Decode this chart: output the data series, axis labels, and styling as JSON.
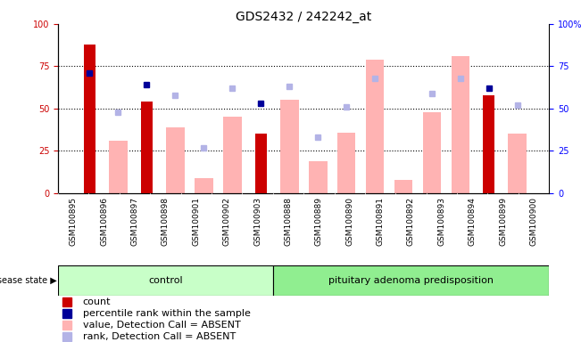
{
  "title": "GDS2432 / 242242_at",
  "samples": [
    "GSM100895",
    "GSM100896",
    "GSM100897",
    "GSM100898",
    "GSM100901",
    "GSM100902",
    "GSM100903",
    "GSM100888",
    "GSM100889",
    "GSM100890",
    "GSM100891",
    "GSM100892",
    "GSM100893",
    "GSM100894",
    "GSM100899",
    "GSM100900"
  ],
  "count": [
    88,
    0,
    54,
    0,
    0,
    0,
    35,
    0,
    0,
    0,
    0,
    0,
    0,
    0,
    58,
    0
  ],
  "percentile_rank": [
    71,
    0,
    64,
    0,
    0,
    0,
    53,
    0,
    0,
    0,
    0,
    0,
    0,
    0,
    62,
    0
  ],
  "value_absent": [
    0,
    31,
    0,
    39,
    9,
    45,
    0,
    55,
    19,
    36,
    79,
    8,
    48,
    81,
    0,
    35
  ],
  "rank_absent": [
    0,
    48,
    0,
    58,
    27,
    62,
    0,
    63,
    33,
    51,
    68,
    0,
    59,
    68,
    0,
    52
  ],
  "n_control": 7,
  "n_disease": 9,
  "color_count": "#cc0000",
  "color_percentile": "#000099",
  "color_value_absent": "#ffb3b3",
  "color_rank_absent": "#b3b3e6",
  "control_label": "control",
  "disease_label": "pituitary adenoma predisposition",
  "disease_state_label": "disease state",
  "ylim": [
    0,
    100
  ],
  "yticks": [
    0,
    25,
    50,
    75,
    100
  ],
  "grid_lines": [
    25,
    50,
    75
  ],
  "bg_plot": "#ffffff",
  "bg_xtick": "#d3d3d3",
  "band_control_color": "#c8ffc8",
  "band_disease_color": "#90ee90"
}
